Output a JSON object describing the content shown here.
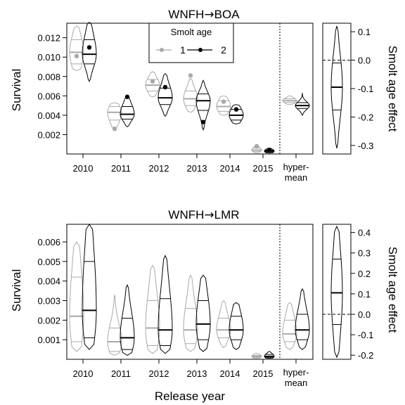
{
  "colors": {
    "age1": "#a9a9a9",
    "age2": "#000000",
    "axis": "#000000"
  },
  "shared": {
    "categories": [
      "2010",
      "2011",
      "2012",
      "2013",
      "2014",
      "2015",
      "hyper-mean"
    ],
    "hypermean_label_line1": "hyper-",
    "hypermean_label_line2": "mean",
    "xlabel": "Release year",
    "ylabel": "Survival",
    "right_ylabel": "Smolt age effect",
    "legend": {
      "title": "Smolt age",
      "entries": [
        {
          "label": "1",
          "series": "age1"
        },
        {
          "label": "2",
          "series": "age2"
        }
      ],
      "placement": "top"
    }
  },
  "chart_data": [
    {
      "type": "violin",
      "title": "WNFH→BOA",
      "title_parts": [
        "WNFH",
        "→",
        "BOA"
      ],
      "ylim": [
        0,
        0.0135
      ],
      "yticks": [
        0.002,
        0.004,
        0.006,
        0.008,
        0.01,
        0.012
      ],
      "yticklabels": [
        "0.002",
        "0.004",
        "0.006",
        "0.008",
        "0.010",
        "0.012"
      ],
      "series": [
        {
          "name": "1",
          "groups": [
            {
              "category": "2010",
              "median": 0.0105,
              "lower": 0.0093,
              "upper": 0.0118,
              "min": 0.0086,
              "max": 0.0132,
              "observed": 0.0101
            },
            {
              "category": "2011",
              "median": 0.0043,
              "lower": 0.0035,
              "upper": 0.0049,
              "min": 0.0027,
              "max": 0.0053,
              "observed": 0.0026
            },
            {
              "category": "2012",
              "median": 0.0071,
              "lower": 0.0065,
              "upper": 0.0077,
              "min": 0.0059,
              "max": 0.0085,
              "observed": 0.0075
            },
            {
              "category": "2013",
              "median": 0.0057,
              "lower": 0.005,
              "upper": 0.0065,
              "min": 0.0043,
              "max": 0.0078,
              "observed": 0.0081
            },
            {
              "category": "2014",
              "median": 0.0049,
              "lower": 0.0044,
              "upper": 0.0055,
              "min": 0.004,
              "max": 0.006,
              "observed": 0.0054
            },
            {
              "category": "2015",
              "median": 0.0004,
              "lower": 0.00025,
              "upper": 0.0006,
              "min": 0.0001,
              "max": 0.0009,
              "observed": 0.0008
            },
            {
              "category": "hyper-mean",
              "median": 0.0055,
              "lower": 0.0053,
              "upper": 0.0057,
              "min": 0.0051,
              "max": 0.006,
              "observed": null
            }
          ]
        },
        {
          "name": "2",
          "groups": [
            {
              "category": "2010",
              "median": 0.0103,
              "lower": 0.0093,
              "upper": 0.0118,
              "min": 0.0075,
              "max": 0.0136,
              "observed": 0.011
            },
            {
              "category": "2011",
              "median": 0.0041,
              "lower": 0.0036,
              "upper": 0.0049,
              "min": 0.0028,
              "max": 0.0059,
              "observed": 0.0059
            },
            {
              "category": "2012",
              "median": 0.0058,
              "lower": 0.0051,
              "upper": 0.0068,
              "min": 0.0039,
              "max": 0.0083,
              "observed": 0.0069
            },
            {
              "category": "2013",
              "median": 0.0055,
              "lower": 0.0045,
              "upper": 0.0062,
              "min": 0.0025,
              "max": 0.0076,
              "observed": 0.0033
            },
            {
              "category": "2014",
              "median": 0.004,
              "lower": 0.0035,
              "upper": 0.0046,
              "min": 0.0031,
              "max": 0.0051,
              "observed": 0.0046
            },
            {
              "category": "2015",
              "median": 0.0003,
              "lower": 0.0002,
              "upper": 0.0004,
              "min": 0.0001,
              "max": 0.0006,
              "observed": 0.0004
            },
            {
              "category": "hyper-mean",
              "median": 0.005,
              "lower": 0.0047,
              "upper": 0.0053,
              "min": 0.004,
              "max": 0.0063,
              "observed": null
            }
          ]
        }
      ],
      "effect_panel": {
        "ylim": [
          -0.33,
          0.13
        ],
        "yticks": [
          0.1,
          0.0,
          -0.1,
          -0.2,
          -0.3
        ],
        "yticklabels": [
          "0.1",
          "0.0",
          "-0.1",
          "-0.2",
          "-0.3"
        ],
        "reference_line": 0.0,
        "median": -0.095,
        "lower": -0.175,
        "upper": -0.01,
        "min": -0.31,
        "max": 0.12
      }
    },
    {
      "type": "violin",
      "title": "WNFH→LMR",
      "title_parts": [
        "WNFH",
        "→",
        "LMR"
      ],
      "ylim": [
        0,
        0.0069
      ],
      "yticks": [
        0.001,
        0.002,
        0.003,
        0.004,
        0.005,
        0.006
      ],
      "yticklabels": [
        "0.001",
        "0.002",
        "0.003",
        "0.004",
        "0.005",
        "0.006"
      ],
      "series": [
        {
          "name": "1",
          "groups": [
            {
              "category": "2010",
              "median": 0.0022,
              "lower": 0.0009,
              "upper": 0.0042,
              "min": 0.0004,
              "max": 0.006,
              "observed": null
            },
            {
              "category": "2011",
              "median": 0.0009,
              "lower": 0.0004,
              "upper": 0.0016,
              "min": 0.0002,
              "max": 0.0033,
              "observed": null
            },
            {
              "category": "2012",
              "median": 0.0016,
              "lower": 0.0007,
              "upper": 0.003,
              "min": 0.0003,
              "max": 0.0048,
              "observed": null
            },
            {
              "category": "2013",
              "median": 0.0015,
              "lower": 0.0008,
              "upper": 0.0026,
              "min": 0.0004,
              "max": 0.0043,
              "observed": null
            },
            {
              "category": "2014",
              "median": 0.0015,
              "lower": 0.0011,
              "upper": 0.0021,
              "min": 0.0006,
              "max": 0.003,
              "observed": null
            },
            {
              "category": "2015",
              "median": 0.00015,
              "lower": 0.0001,
              "upper": 0.0002,
              "min": 5e-05,
              "max": 0.0003,
              "observed": null
            },
            {
              "category": "hyper-mean",
              "median": 0.0013,
              "lower": 0.0009,
              "upper": 0.002,
              "min": 0.0005,
              "max": 0.0029,
              "observed": null
            }
          ]
        },
        {
          "name": "2",
          "groups": [
            {
              "category": "2010",
              "median": 0.0025,
              "lower": 0.0011,
              "upper": 0.005,
              "min": 0.0005,
              "max": 0.0069,
              "observed": null
            },
            {
              "category": "2011",
              "median": 0.0011,
              "lower": 0.0005,
              "upper": 0.0021,
              "min": 0.0002,
              "max": 0.0038,
              "observed": null
            },
            {
              "category": "2012",
              "median": 0.0015,
              "lower": 0.0007,
              "upper": 0.0031,
              "min": 0.0003,
              "max": 0.0053,
              "observed": null
            },
            {
              "category": "2013",
              "median": 0.0018,
              "lower": 0.001,
              "upper": 0.003,
              "min": 0.0004,
              "max": 0.0043,
              "observed": null
            },
            {
              "category": "2014",
              "median": 0.0015,
              "lower": 0.001,
              "upper": 0.0022,
              "min": 0.0005,
              "max": 0.0029,
              "observed": null
            },
            {
              "category": "2015",
              "median": 0.00015,
              "lower": 0.0001,
              "upper": 0.00025,
              "min": 5e-05,
              "max": 0.0004,
              "observed": null
            },
            {
              "category": "hyper-mean",
              "median": 0.0015,
              "lower": 0.001,
              "upper": 0.0023,
              "min": 0.0005,
              "max": 0.0036,
              "observed": null
            }
          ]
        }
      ],
      "effect_panel": {
        "ylim": [
          -0.22,
          0.44
        ],
        "yticks": [
          0.4,
          0.3,
          0.2,
          0.1,
          0.0,
          -0.1,
          -0.2
        ],
        "yticklabels": [
          "0.4",
          "0.3",
          "0.2",
          "0.1",
          "0.0",
          "-0.1",
          "-0.2"
        ],
        "reference_line": 0.0,
        "median": 0.105,
        "lower": -0.05,
        "upper": 0.27,
        "min": -0.21,
        "max": 0.43
      }
    }
  ]
}
